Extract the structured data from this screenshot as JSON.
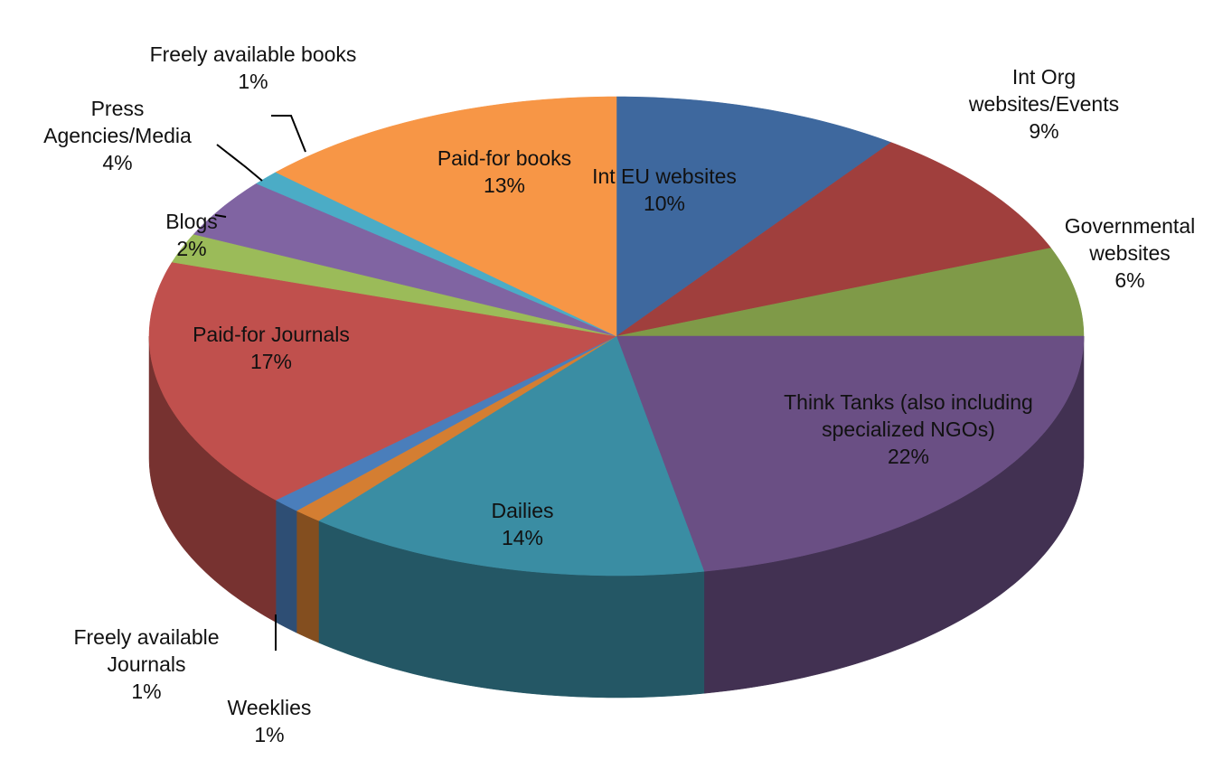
{
  "chart_data": {
    "type": "pie3d",
    "categories": [
      "Int EU websites",
      "Int Org websites/Events",
      "Governmental websites",
      "Think Tanks (also including specialized NGOs)",
      "Dailies",
      "Weeklies",
      "Freely available Journals",
      "Paid-for Journals",
      "Blogs",
      "Press Agencies/Media",
      "Freely available books",
      "Paid-for books"
    ],
    "values": [
      10,
      9,
      6,
      22,
      14,
      1,
      1,
      17,
      2,
      4,
      1,
      13
    ],
    "value_labels": [
      "10%",
      "9%",
      "6%",
      "22%",
      "14%",
      "1%",
      "1%",
      "17%",
      "2%",
      "4%",
      "1%",
      "13%"
    ],
    "colors": [
      "#3e689e",
      "#a03f3d",
      "#7f9a48",
      "#6a4f84",
      "#3a8da3",
      "#d47e32",
      "#4a7ebb",
      "#c0504d",
      "#9bbb59",
      "#8064a2",
      "#4bacc6",
      "#f79646"
    ]
  }
}
